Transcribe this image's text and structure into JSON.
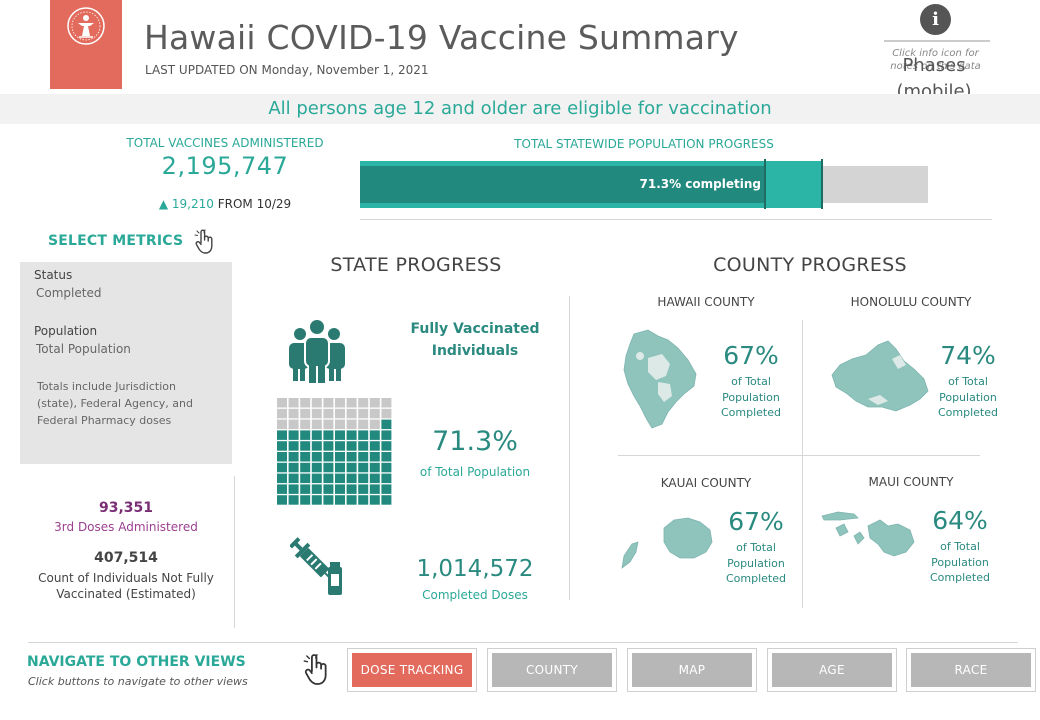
{
  "header": {
    "title": "Hawaii COVID-19 Vaccine Summary",
    "last_updated": "LAST UPDATED ON Monday, November 1, 2021",
    "info_note": "Click info icon for notes on this data",
    "phases_label": "Phases (mobile)",
    "info_icon": "info-icon",
    "logo_icon": "hawaii-doh-seal-icon",
    "brand_color": "#e36b5d"
  },
  "banner": {
    "text": "All persons age 12 and older are eligible for vaccination"
  },
  "totals": {
    "vaccines_label": "TOTAL VACCINES ADMINISTERED",
    "vaccines_value": "2,195,747",
    "delta_value": "19,210",
    "delta_suffix": "FROM 10/29",
    "progress_label": "TOTAL STATEWIDE POPULATION PROGRESS",
    "progress_text": "71.3% completing",
    "progress_completed_fraction": 0.713,
    "progress_initiated_fraction": 0.814
  },
  "select_metrics": {
    "title": "SELECT METRICS",
    "status_label": "Status",
    "status_value": "Completed",
    "population_label": "Population",
    "population_value": "Total Population",
    "note": "Totals include Jurisdiction (state), Federal Agency, and Federal Pharmacy doses"
  },
  "side_stats": {
    "third_doses_value": "93,351",
    "third_doses_label": "3rd Doses Administered",
    "not_fully_value": "407,514",
    "not_fully_label": "Count of Individuals Not Fully Vaccinated (Estimated)"
  },
  "state_progress": {
    "title": "STATE PROGRESS",
    "fully_label": "Fully Vaccinated Individuals",
    "pct_value": "71.3%",
    "pct_label": "of Total Population",
    "doses_value": "1,014,572",
    "doses_label": "Completed Doses",
    "waffle_filled_cells": 71,
    "waffle_total_cells": 100
  },
  "county_progress": {
    "title": "COUNTY PROGRESS",
    "counties": [
      {
        "name": "HAWAII COUNTY",
        "pct": "67%",
        "label": "of Total Population Completed"
      },
      {
        "name": "HONOLULU COUNTY",
        "pct": "74%",
        "label": "of Total Population Completed"
      },
      {
        "name": "KAUAI COUNTY",
        "pct": "67%",
        "label": "of Total Population Completed"
      },
      {
        "name": "MAUI COUNTY",
        "pct": "64%",
        "label": "of Total Population Completed"
      }
    ]
  },
  "nav": {
    "title": "NAVIGATE TO OTHER VIEWS",
    "subtitle": "Click buttons to navigate to other views",
    "buttons": [
      "DOSE TRACKING",
      "COUNTY",
      "MAP",
      "AGE",
      "RACE"
    ]
  },
  "colors": {
    "teal": "#2aa898",
    "teal_dark": "#22897f",
    "teal_light": "#2ab5a6",
    "gray_bar": "#d4d4d4",
    "purple": "#7a2e74",
    "button_gray": "#b7b7b7"
  }
}
